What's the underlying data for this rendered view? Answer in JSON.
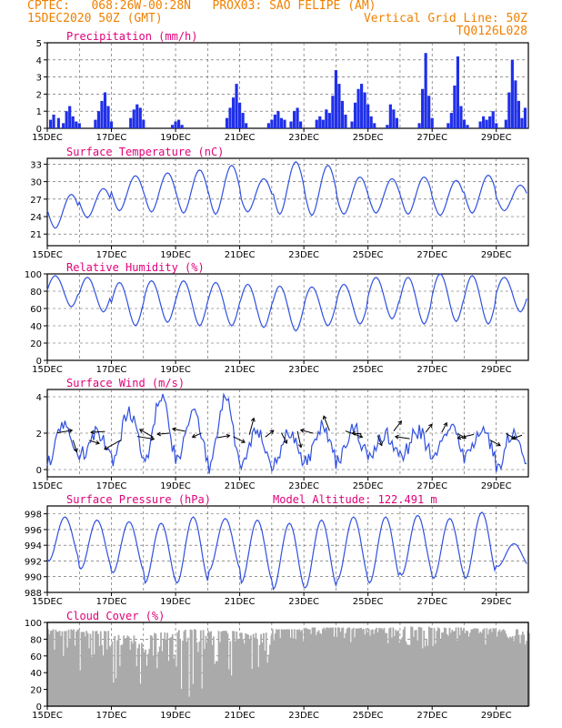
{
  "header": {
    "left_line1": "CPTEC:   068:26W-00:28N   PROX03: SAO FELIPE (AM)",
    "left_line2": "15DEC2020 50Z (GMT)",
    "right_line2": "Vertical Grid Line: 50Z",
    "right_line3": "TQ0126L028"
  },
  "x_tick_labels": [
    "15DEC",
    "17DEC",
    "19DEC",
    "21DEC",
    "23DEC",
    "25DEC",
    "27DEC",
    "29DEC"
  ],
  "x_tick_days": [
    0,
    2,
    4,
    6,
    8,
    10,
    12,
    14
  ],
  "x_range_days": [
    0,
    15
  ],
  "x_start": "2020-12-15",
  "colors": {
    "line": "#3050e0",
    "bar": "#2030e8",
    "title": "#e0007a",
    "header": "#f08000",
    "cloud": "#aaaaaa",
    "arrow": "#000000"
  },
  "chart_data": [
    {
      "type": "bar",
      "title": "Precipitation (mm/h)",
      "ylim": [
        0,
        5
      ],
      "yticks": [
        0,
        1,
        2,
        3,
        4,
        5
      ],
      "bars": [
        [
          0.1,
          0.5
        ],
        [
          0.2,
          0.8
        ],
        [
          0.35,
          0.6
        ],
        [
          0.5,
          0.3
        ],
        [
          0.6,
          1.0
        ],
        [
          0.7,
          1.3
        ],
        [
          0.8,
          0.7
        ],
        [
          0.9,
          0.4
        ],
        [
          1.0,
          0.3
        ],
        [
          1.5,
          0.5
        ],
        [
          1.6,
          1.0
        ],
        [
          1.7,
          1.6
        ],
        [
          1.8,
          2.1
        ],
        [
          1.9,
          1.3
        ],
        [
          2.0,
          0.4
        ],
        [
          2.6,
          0.6
        ],
        [
          2.7,
          1.1
        ],
        [
          2.8,
          1.4
        ],
        [
          2.9,
          1.2
        ],
        [
          3.0,
          0.5
        ],
        [
          3.9,
          0.2
        ],
        [
          4.0,
          0.4
        ],
        [
          4.1,
          0.5
        ],
        [
          4.2,
          0.2
        ],
        [
          5.6,
          0.6
        ],
        [
          5.7,
          1.2
        ],
        [
          5.8,
          1.8
        ],
        [
          5.9,
          2.6
        ],
        [
          6.0,
          1.5
        ],
        [
          6.1,
          0.9
        ],
        [
          6.2,
          0.3
        ],
        [
          6.9,
          0.3
        ],
        [
          7.0,
          0.5
        ],
        [
          7.1,
          0.8
        ],
        [
          7.2,
          1.0
        ],
        [
          7.3,
          0.6
        ],
        [
          7.4,
          0.5
        ],
        [
          7.6,
          0.4
        ],
        [
          7.7,
          1.0
        ],
        [
          7.8,
          1.2
        ],
        [
          7.9,
          0.4
        ],
        [
          8.4,
          0.5
        ],
        [
          8.5,
          0.7
        ],
        [
          8.6,
          0.5
        ],
        [
          8.7,
          1.1
        ],
        [
          8.8,
          0.9
        ],
        [
          8.9,
          1.9
        ],
        [
          9.0,
          3.4
        ],
        [
          9.1,
          2.6
        ],
        [
          9.2,
          1.6
        ],
        [
          9.3,
          0.8
        ],
        [
          9.5,
          0.4
        ],
        [
          9.6,
          1.5
        ],
        [
          9.7,
          2.3
        ],
        [
          9.8,
          2.6
        ],
        [
          9.9,
          2.1
        ],
        [
          10.0,
          1.4
        ],
        [
          10.1,
          0.7
        ],
        [
          10.2,
          0.3
        ],
        [
          10.6,
          0.2
        ],
        [
          10.7,
          1.4
        ],
        [
          10.8,
          1.1
        ],
        [
          10.9,
          0.6
        ],
        [
          11.6,
          0.3
        ],
        [
          11.7,
          2.3
        ],
        [
          11.8,
          4.4
        ],
        [
          11.9,
          1.9
        ],
        [
          12.0,
          0.6
        ],
        [
          12.5,
          0.3
        ],
        [
          12.6,
          0.9
        ],
        [
          12.7,
          2.5
        ],
        [
          12.8,
          4.2
        ],
        [
          12.9,
          1.3
        ],
        [
          13.0,
          0.5
        ],
        [
          13.1,
          0.2
        ],
        [
          13.5,
          0.4
        ],
        [
          13.6,
          0.7
        ],
        [
          13.7,
          0.5
        ],
        [
          13.8,
          0.7
        ],
        [
          13.9,
          1.0
        ],
        [
          14.0,
          0.3
        ],
        [
          14.3,
          0.5
        ],
        [
          14.4,
          2.1
        ],
        [
          14.5,
          4.0
        ],
        [
          14.6,
          2.8
        ],
        [
          14.7,
          1.6
        ],
        [
          14.8,
          0.6
        ],
        [
          14.9,
          1.2
        ]
      ]
    },
    {
      "type": "line",
      "title": "Surface Temperature (nC)",
      "ylim": [
        19,
        34
      ],
      "yticks": [
        21,
        24,
        27,
        30,
        33
      ],
      "y_min_by_day": [
        22,
        23.8,
        25,
        24.8,
        24.6,
        24.4,
        24.8,
        24.4,
        24.2,
        24.4,
        24.6,
        24.4,
        24.2,
        24.6,
        25
      ],
      "y_max_by_day": [
        27.8,
        28.8,
        31,
        31.5,
        32,
        32.8,
        30.5,
        33.4,
        32.8,
        30.8,
        30.5,
        30.8,
        30.2,
        31.1,
        29.4
      ],
      "peak_frac": 0.75
    },
    {
      "type": "line",
      "title": "Relative Humidity (%)",
      "ylim": [
        0,
        100
      ],
      "yticks": [
        0,
        20,
        40,
        60,
        80,
        100
      ],
      "y_min_by_day": [
        62,
        56,
        40,
        44,
        40,
        40,
        38,
        34,
        40,
        42,
        48,
        42,
        45,
        42,
        56
      ],
      "y_max_by_day": [
        98,
        96,
        90,
        92,
        92,
        90,
        88,
        86,
        85,
        88,
        96,
        96,
        100,
        98,
        96
      ],
      "peak_frac": 0.25
    },
    {
      "type": "line",
      "title": "Surface Wind (m/s)",
      "ylim": [
        -0.4,
        4.4
      ],
      "yticks": [
        0,
        2,
        4
      ],
      "y_min_by_day": [
        0.6,
        0.8,
        0.5,
        0.5,
        0.5,
        0.2,
        0.2,
        0.3,
        0.4,
        0.5,
        0.6,
        0.8,
        0.9,
        0.6,
        0.2
      ],
      "y_max_by_day": [
        2.6,
        2.1,
        3.2,
        3.9,
        3.0,
        4.0,
        2.2,
        2.0,
        2.4,
        2.3,
        2.0,
        2.1,
        2.3,
        2.4,
        2.2
      ],
      "peak_frac": 0.55
    },
    {
      "type": "line",
      "title": "Surface Pressure (hPa)",
      "annotation": "Model Altitude: 122.491 m",
      "ylim": [
        988,
        999
      ],
      "yticks": [
        988,
        990,
        992,
        994,
        996,
        998
      ],
      "y_min_by_day": [
        992,
        991,
        990.5,
        989.2,
        989.2,
        990.8,
        989.2,
        988.4,
        988.6,
        989.6,
        989.2,
        990.2,
        989.8,
        989.8,
        991.3
      ],
      "y_max_by_day": [
        997.6,
        997.2,
        997.0,
        996.8,
        997.6,
        997.4,
        997.2,
        996.8,
        997.2,
        997.6,
        997.6,
        997.8,
        997.4,
        998.2,
        994.2
      ],
      "peak_frac": 0.55
    },
    {
      "type": "area",
      "title": "Cloud Cover (%)",
      "ylim": [
        0,
        100
      ],
      "yticks": [
        0,
        20,
        40,
        60,
        80,
        100
      ],
      "y_max": [
        92,
        90,
        85,
        88,
        92,
        90,
        88,
        92,
        94,
        94,
        94,
        95,
        94,
        93,
        92
      ],
      "y_min": [
        70,
        60,
        45,
        55,
        40,
        35,
        60,
        78,
        85,
        82,
        80,
        78,
        80,
        75,
        80
      ]
    }
  ]
}
